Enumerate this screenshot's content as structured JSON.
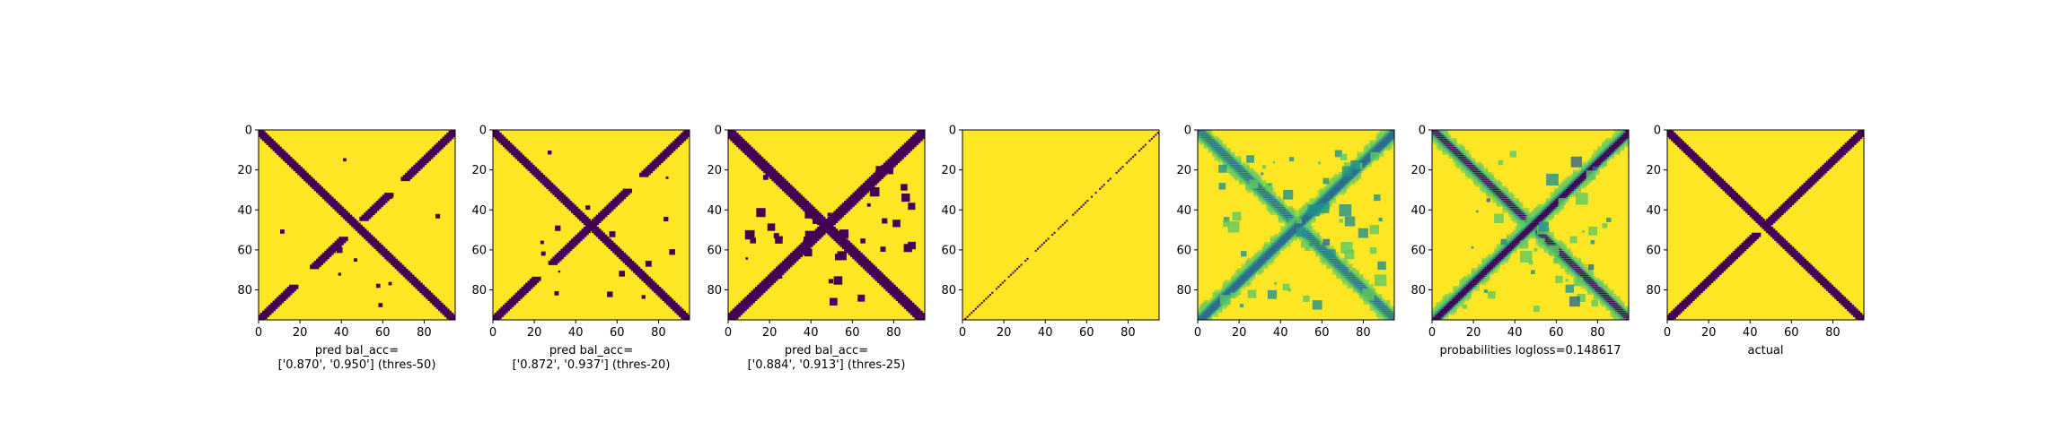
{
  "figure": {
    "colors": {
      "background": "#ffffff",
      "dark": "#440154",
      "mid": "#31688e",
      "teal": "#21918c",
      "green": "#5ec962",
      "yellow": "#fde725"
    }
  },
  "chart_data": [
    {
      "type": "heatmap",
      "caption_lines": [
        "pred bal_acc=",
        "['0.870', '0.950'] (thres-50)"
      ],
      "x_ticks": [
        0,
        20,
        40,
        60,
        80
      ],
      "y_ticks": [
        0,
        20,
        40,
        60,
        80
      ],
      "xlim": [
        0,
        95
      ],
      "ylim": [
        95,
        0
      ],
      "colormap": "viridis-binary",
      "pattern": "thresholded prediction: two dark crossing diagonals with small gaps/noise",
      "diagonals": [
        {
          "from": [
            0,
            0
          ],
          "to": [
            95,
            95
          ],
          "kind": "main"
        },
        {
          "from": [
            0,
            95
          ],
          "to": [
            95,
            0
          ],
          "kind": "anti",
          "gaps": [
            [
              18,
              26
            ],
            [
              42,
              50
            ],
            [
              64,
              70
            ]
          ]
        }
      ]
    },
    {
      "type": "heatmap",
      "caption_lines": [
        "pred bal_acc=",
        "['0.872', '0.937'] (thres-20)"
      ],
      "x_ticks": [
        0,
        20,
        40,
        60,
        80
      ],
      "y_ticks": [
        0,
        20,
        40,
        60,
        80
      ],
      "xlim": [
        0,
        95
      ],
      "ylim": [
        95,
        0
      ],
      "colormap": "viridis-binary",
      "pattern": "thresholded prediction: crossing diagonals, few extra specks",
      "diagonals": [
        {
          "from": [
            0,
            0
          ],
          "to": [
            95,
            95
          ],
          "kind": "main"
        },
        {
          "from": [
            0,
            95
          ],
          "to": [
            95,
            0
          ],
          "kind": "anti",
          "gaps": [
            [
              22,
              28
            ],
            [
              66,
              72
            ]
          ]
        }
      ]
    },
    {
      "type": "heatmap",
      "caption_lines": [
        "pred bal_acc=",
        "['0.884', '0.913'] (thres-25)"
      ],
      "x_ticks": [
        0,
        20,
        40,
        60,
        80
      ],
      "y_ticks": [
        0,
        20,
        40,
        60,
        80
      ],
      "xlim": [
        0,
        95
      ],
      "ylim": [
        95,
        0
      ],
      "colormap": "viridis-binary",
      "pattern": "thresholded prediction: thick crossing diagonals with many blobs",
      "diagonals": [
        {
          "from": [
            0,
            0
          ],
          "to": [
            95,
            95
          ],
          "kind": "main"
        },
        {
          "from": [
            0,
            95
          ],
          "to": [
            95,
            0
          ],
          "kind": "anti",
          "gaps": []
        }
      ]
    },
    {
      "type": "heatmap",
      "caption_lines": [],
      "x_ticks": [
        0,
        20,
        40,
        60,
        80
      ],
      "y_ticks": [
        0,
        20,
        40,
        60,
        80
      ],
      "xlim": [
        0,
        95
      ],
      "ylim": [
        95,
        0
      ],
      "colormap": "viridis-binary",
      "pattern": "thin dotted anti-diagonal on yellow",
      "diagonals": [
        {
          "from": [
            0,
            95
          ],
          "to": [
            95,
            0
          ],
          "kind": "thin"
        }
      ]
    },
    {
      "type": "heatmap",
      "caption_lines": [],
      "x_ticks": [
        0,
        20,
        40,
        60,
        80
      ],
      "y_ticks": [
        0,
        20,
        40,
        60,
        80
      ],
      "xlim": [
        0,
        95
      ],
      "ylim": [
        95,
        0
      ],
      "colormap": "viridis",
      "pattern": "continuous probabilities: blurred diagonals with green/teal halos",
      "diagonals": [
        {
          "from": [
            0,
            0
          ],
          "to": [
            95,
            95
          ],
          "kind": "main"
        },
        {
          "from": [
            0,
            95
          ],
          "to": [
            95,
            0
          ],
          "kind": "anti"
        }
      ]
    },
    {
      "type": "heatmap",
      "caption_lines": [
        "probabilities logloss=0.148617"
      ],
      "x_ticks": [
        0,
        20,
        40,
        60,
        80
      ],
      "y_ticks": [
        0,
        20,
        40,
        60,
        80
      ],
      "xlim": [
        0,
        95
      ],
      "ylim": [
        95,
        0
      ],
      "colormap": "viridis",
      "pattern": "continuous probabilities: sharp dark diagonals with teal halos",
      "diagonals": [
        {
          "from": [
            0,
            0
          ],
          "to": [
            95,
            95
          ],
          "kind": "main"
        },
        {
          "from": [
            0,
            95
          ],
          "to": [
            95,
            0
          ],
          "kind": "anti"
        }
      ]
    },
    {
      "type": "heatmap",
      "caption_lines": [
        "actual"
      ],
      "x_ticks": [
        0,
        20,
        40,
        60,
        80
      ],
      "y_ticks": [
        0,
        20,
        40,
        60,
        80
      ],
      "xlim": [
        0,
        95
      ],
      "ylim": [
        95,
        0
      ],
      "colormap": "viridis-binary",
      "pattern": "ground truth: clean crossing diagonals",
      "diagonals": [
        {
          "from": [
            0,
            0
          ],
          "to": [
            95,
            95
          ],
          "kind": "main"
        },
        {
          "from": [
            0,
            95
          ],
          "to": [
            95,
            0
          ],
          "kind": "anti",
          "gaps": [
            [
              44,
              48
            ]
          ]
        }
      ]
    }
  ]
}
